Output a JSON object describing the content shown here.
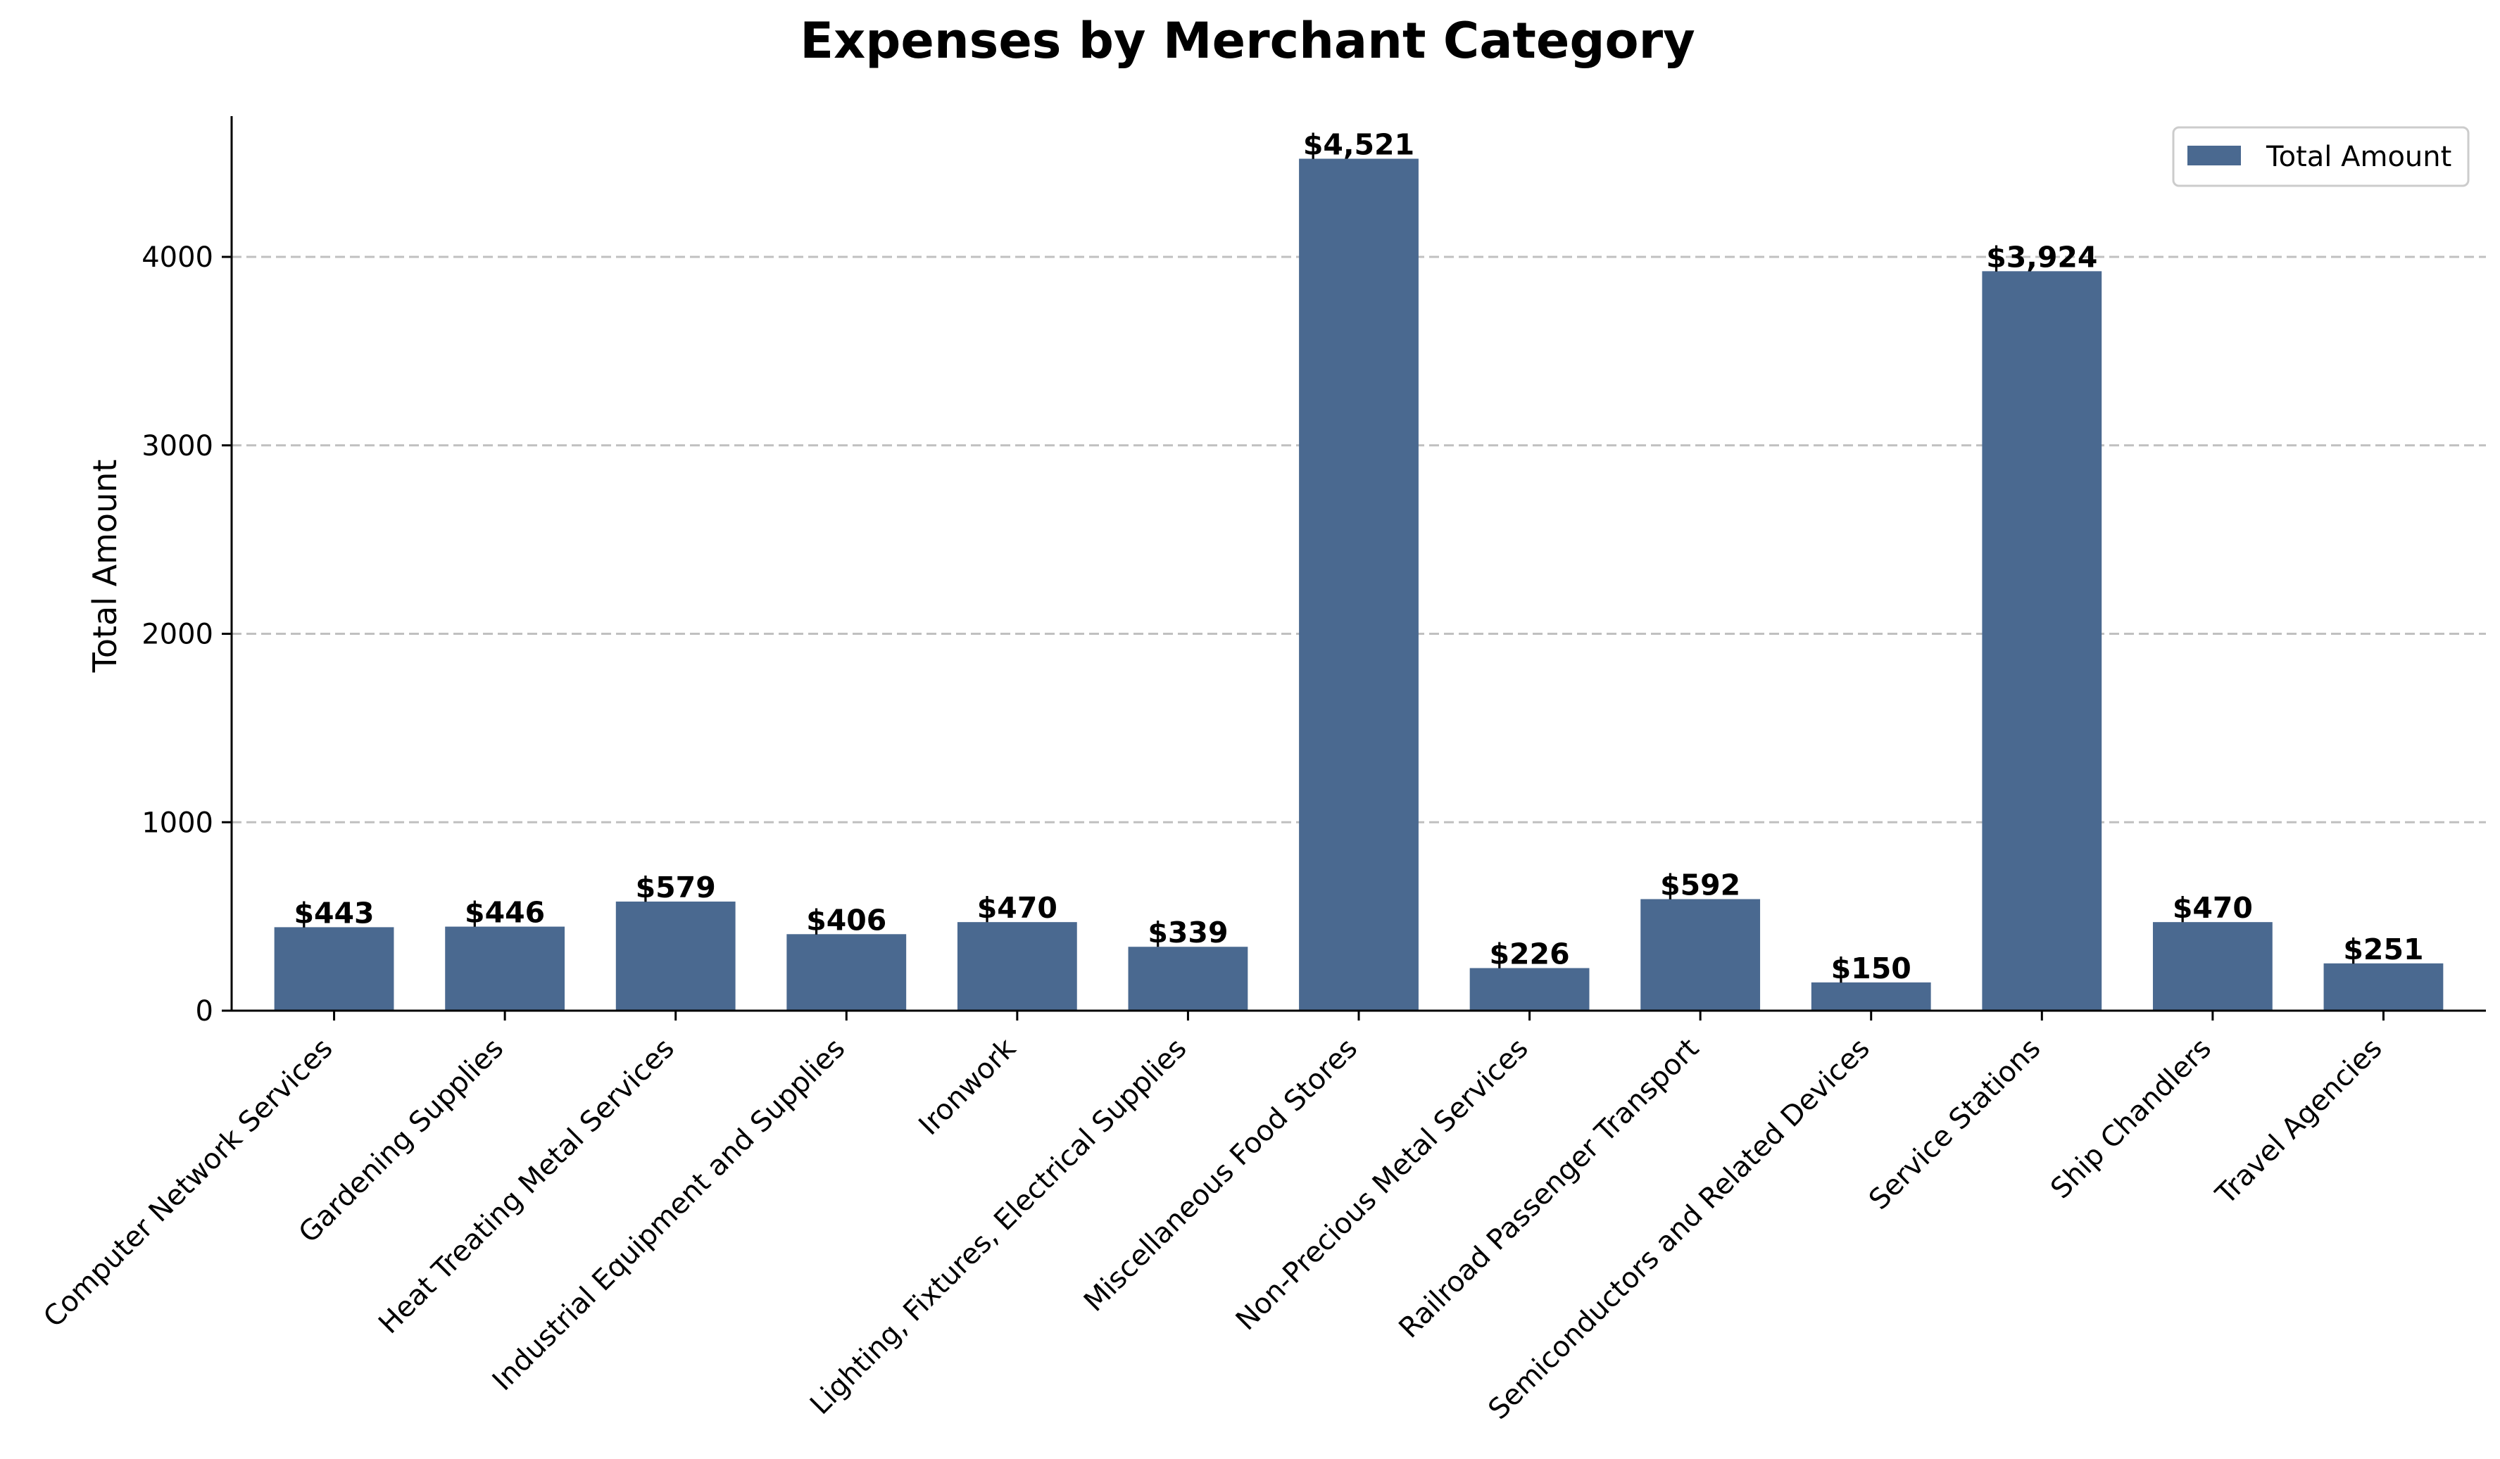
{
  "chart_data": {
    "type": "bar",
    "title": "Expenses by Merchant Category",
    "xlabel": "",
    "ylabel": "Total Amount",
    "categories": [
      "Computer Network Services",
      "Gardening Supplies",
      "Heat Treating Metal Services",
      "Industrial Equipment and Supplies",
      "Ironwork",
      "Lighting, Fixtures, Electrical Supplies",
      "Miscellaneous Food Stores",
      "Non-Precious Metal Services",
      "Railroad Passenger Transport",
      "Semiconductors and Related Devices",
      "Service Stations",
      "Ship Chandlers",
      "Travel Agencies"
    ],
    "series": [
      {
        "name": "Total Amount",
        "values": [
          443,
          446,
          579,
          406,
          470,
          339,
          4521,
          226,
          592,
          150,
          3924,
          470,
          251
        ],
        "data_labels": [
          "$443",
          "$446",
          "$579",
          "$406",
          "$470",
          "$339",
          "$4,521",
          "$226",
          "$592",
          "$150",
          "$3,924",
          "$470",
          "$251"
        ],
        "color": "#4a6990"
      }
    ],
    "ylim": [
      0,
      4747
    ],
    "yticks": [
      0,
      1000,
      2000,
      3000,
      4000
    ],
    "grid": "horizontal-dashed",
    "legend": "top-right"
  }
}
